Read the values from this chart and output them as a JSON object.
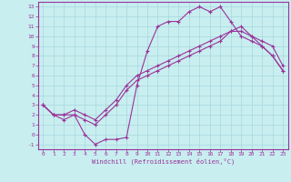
{
  "title": "",
  "xlabel": "Windchill (Refroidissement éolien,°C)",
  "bg_color": "#c8eef0",
  "grid_color": "#a8d8dc",
  "line_color": "#993399",
  "xlim": [
    -0.5,
    23.5
  ],
  "ylim": [
    -1.5,
    13.5
  ],
  "xticks": [
    0,
    1,
    2,
    3,
    4,
    5,
    6,
    7,
    8,
    9,
    10,
    11,
    12,
    13,
    14,
    15,
    16,
    17,
    18,
    19,
    20,
    21,
    22,
    23
  ],
  "yticks": [
    -1,
    0,
    1,
    2,
    3,
    4,
    5,
    6,
    7,
    8,
    9,
    10,
    11,
    12,
    13
  ],
  "line1_x": [
    0,
    1,
    2,
    3,
    4,
    5,
    6,
    7,
    8,
    9,
    10,
    11,
    12,
    13,
    14,
    15,
    16,
    17,
    18,
    19,
    20,
    21,
    22,
    23
  ],
  "line1_y": [
    3.0,
    2.0,
    2.0,
    2.0,
    0.0,
    -1.0,
    -0.5,
    -0.5,
    -0.3,
    5.0,
    8.5,
    11.0,
    11.5,
    11.5,
    12.5,
    13.0,
    12.5,
    13.0,
    11.5,
    10.0,
    9.5,
    9.0,
    8.0,
    6.5
  ],
  "line2_x": [
    0,
    1,
    2,
    3,
    4,
    5,
    6,
    7,
    8,
    9,
    10,
    11,
    12,
    13,
    14,
    15,
    16,
    17,
    18,
    19,
    20,
    21,
    22,
    23
  ],
  "line2_y": [
    3.0,
    2.0,
    2.0,
    2.5,
    2.0,
    1.5,
    2.5,
    3.5,
    5.0,
    6.0,
    6.5,
    7.0,
    7.5,
    8.0,
    8.5,
    9.0,
    9.5,
    10.0,
    10.5,
    10.5,
    10.0,
    9.0,
    8.0,
    6.5
  ],
  "line3_x": [
    0,
    1,
    2,
    3,
    4,
    5,
    6,
    7,
    8,
    9,
    10,
    11,
    12,
    13,
    14,
    15,
    16,
    17,
    18,
    19,
    20,
    21,
    22,
    23
  ],
  "line3_y": [
    3.0,
    2.0,
    1.5,
    2.0,
    1.5,
    1.0,
    2.0,
    3.0,
    4.5,
    5.5,
    6.0,
    6.5,
    7.0,
    7.5,
    8.0,
    8.5,
    9.0,
    9.5,
    10.5,
    11.0,
    10.0,
    9.5,
    9.0,
    7.0
  ],
  "label_fontsize": 4.5,
  "xlabel_fontsize": 5.0
}
